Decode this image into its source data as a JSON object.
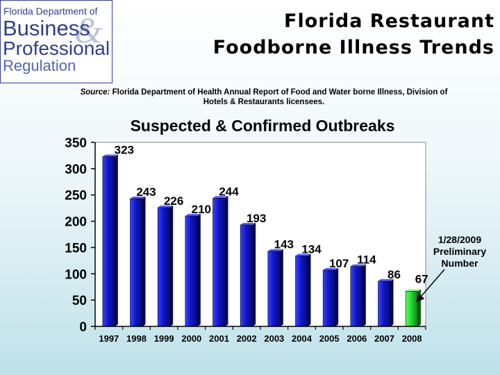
{
  "title_lines": [
    "Florida Restaurant",
    "Foodborne Illness Trends"
  ],
  "logo": {
    "line1": "Florida Department of",
    "line2": "Business",
    "line3": "Professional",
    "line4": "Regulation",
    "ampersand": "&"
  },
  "source": {
    "label": "Source:",
    "text": "Florida Department of Health Annual Report of Food and Water borne Illness, Division of Hotels & Restaurants licensees."
  },
  "annotation": "1/28/2009 Preliminary Number",
  "colors": {
    "bar": "#0f17c8",
    "bar_highlight": "#21d82f",
    "logo_blue": "#2d3f8f"
  },
  "chart_data": {
    "type": "bar",
    "title": "Suspected & Confirmed Outbreaks",
    "categories": [
      "1997",
      "1998",
      "1999",
      "2000",
      "2001",
      "2002",
      "2003",
      "2004",
      "2005",
      "2006",
      "2007",
      "2008"
    ],
    "values": [
      323,
      243,
      226,
      210,
      244,
      193,
      143,
      134,
      107,
      114,
      86,
      67
    ],
    "data_labels": [
      "323",
      "243",
      "226",
      "210",
      "244",
      "193",
      "143",
      "134",
      "107",
      "114",
      "86",
      "67"
    ],
    "ylim": [
      0,
      350
    ],
    "yticks": [
      0,
      50,
      100,
      150,
      200,
      250,
      300,
      350
    ],
    "grid": false,
    "highlight_index": 11
  }
}
